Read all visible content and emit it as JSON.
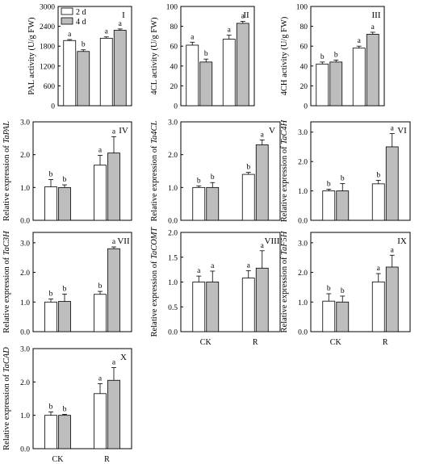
{
  "legend": [
    {
      "label": "2 d",
      "color": "#ffffff"
    },
    {
      "label": "4 d",
      "color": "#bdbdbd"
    }
  ],
  "chart_data": [
    {
      "type": "bar",
      "panel": "I",
      "ylabel_parts": [
        {
          "t": "PAL activity (U/g FW)",
          "i": false
        }
      ],
      "ylim": [
        0,
        3000
      ],
      "ticks": [
        0,
        600,
        1200,
        1800,
        2400,
        3000
      ],
      "tick_labels": [
        "0",
        "600",
        "1200",
        "1800",
        "2400",
        "3000"
      ],
      "categories": [
        "CK",
        "R"
      ],
      "show_xticks": false,
      "series": [
        {
          "name": "2 d",
          "values": [
            1970,
            2040
          ],
          "errors": [
            30,
            40
          ],
          "letters": [
            "a",
            "a"
          ]
        },
        {
          "name": "4 d",
          "values": [
            1640,
            2280
          ],
          "errors": [
            50,
            40
          ],
          "letters": [
            "b",
            "a"
          ]
        }
      ]
    },
    {
      "type": "bar",
      "panel": "II",
      "ylabel_parts": [
        {
          "t": "4CL activity (U/g FW)",
          "i": false
        }
      ],
      "ylim": [
        0,
        100
      ],
      "ticks": [
        0,
        20,
        40,
        60,
        80,
        100
      ],
      "tick_labels": [
        "0",
        "20",
        "40",
        "60",
        "80",
        "100"
      ],
      "categories": [
        "CK",
        "R"
      ],
      "show_xticks": false,
      "series": [
        {
          "name": "2 d",
          "values": [
            61,
            67
          ],
          "errors": [
            3,
            4
          ],
          "letters": [
            "a",
            "a"
          ]
        },
        {
          "name": "4 d",
          "values": [
            44,
            83
          ],
          "errors": [
            3,
            2
          ],
          "letters": [
            "b",
            "a"
          ]
        }
      ]
    },
    {
      "type": "bar",
      "panel": "III",
      "ylabel_parts": [
        {
          "t": "4CH activity (U/g FW)",
          "i": false
        }
      ],
      "ylim": [
        0,
        100
      ],
      "ticks": [
        0,
        20,
        40,
        60,
        80,
        100
      ],
      "tick_labels": [
        "0",
        "20",
        "40",
        "60",
        "80",
        "100"
      ],
      "categories": [
        "CK",
        "R"
      ],
      "show_xticks": false,
      "series": [
        {
          "name": "2 d",
          "values": [
            42,
            58
          ],
          "errors": [
            2,
            2
          ],
          "letters": [
            "b",
            "a"
          ]
        },
        {
          "name": "4 d",
          "values": [
            44,
            72
          ],
          "errors": [
            2,
            2
          ],
          "letters": [
            "b",
            "a"
          ]
        }
      ]
    },
    {
      "type": "bar",
      "panel": "IV",
      "ylabel_parts": [
        {
          "t": "Relative expression of ",
          "i": false
        },
        {
          "t": "TaPAL",
          "i": true
        }
      ],
      "ylim": [
        0,
        3
      ],
      "ticks": [
        0,
        1,
        2,
        3
      ],
      "tick_labels": [
        "0.0",
        "1.0",
        "2.0",
        "3.0"
      ],
      "categories": [
        "CK",
        "R"
      ],
      "show_xticks": false,
      "series": [
        {
          "name": "2 d",
          "values": [
            1.02,
            1.68
          ],
          "errors": [
            0.22,
            0.3
          ],
          "letters": [
            "b",
            "a"
          ]
        },
        {
          "name": "4 d",
          "values": [
            1.0,
            2.05
          ],
          "errors": [
            0.08,
            0.5
          ],
          "letters": [
            "b",
            "a"
          ]
        }
      ]
    },
    {
      "type": "bar",
      "panel": "V",
      "ylabel_parts": [
        {
          "t": "Relative expression of ",
          "i": false
        },
        {
          "t": "Ta4CL",
          "i": true
        }
      ],
      "ylim": [
        0,
        3
      ],
      "ticks": [
        0,
        1,
        2,
        3
      ],
      "tick_labels": [
        "0.0",
        "1.0",
        "2.0",
        "3.0"
      ],
      "categories": [
        "CK",
        "R"
      ],
      "show_xticks": false,
      "series": [
        {
          "name": "2 d",
          "values": [
            1.0,
            1.4
          ],
          "errors": [
            0.05,
            0.06
          ],
          "letters": [
            "b",
            "b"
          ]
        },
        {
          "name": "4 d",
          "values": [
            1.0,
            2.3
          ],
          "errors": [
            0.15,
            0.15
          ],
          "letters": [
            "b",
            "a"
          ]
        }
      ]
    },
    {
      "type": "bar",
      "panel": "VI",
      "ylabel_parts": [
        {
          "t": "Relative expression of ",
          "i": false
        },
        {
          "t": "TaC4H",
          "i": true
        }
      ],
      "ylim": [
        0,
        3.35
      ],
      "ticks": [
        0,
        1,
        2,
        3
      ],
      "tick_labels": [
        "0.0",
        "1.0",
        "2.0",
        "3.0"
      ],
      "categories": [
        "CK",
        "R"
      ],
      "show_xticks": false,
      "series": [
        {
          "name": "2 d",
          "values": [
            1.0,
            1.24
          ],
          "errors": [
            0.06,
            0.12
          ],
          "letters": [
            "b",
            "b"
          ]
        },
        {
          "name": "4 d",
          "values": [
            1.0,
            2.5
          ],
          "errors": [
            0.25,
            0.45
          ],
          "letters": [
            "b",
            "a"
          ]
        }
      ]
    },
    {
      "type": "bar",
      "panel": "VII",
      "ylabel_parts": [
        {
          "t": "Relative expression of ",
          "i": false
        },
        {
          "t": "TaC3H",
          "i": true
        }
      ],
      "ylim": [
        0,
        3.35
      ],
      "ticks": [
        0,
        1,
        2,
        3
      ],
      "tick_labels": [
        "0.0",
        "1.0",
        "2.0",
        "3.0"
      ],
      "categories": [
        "CK",
        "R"
      ],
      "show_xticks": false,
      "series": [
        {
          "name": "2 d",
          "values": [
            1.0,
            1.26
          ],
          "errors": [
            0.1,
            0.1
          ],
          "letters": [
            "b",
            "b"
          ]
        },
        {
          "name": "4 d",
          "values": [
            1.02,
            2.8
          ],
          "errors": [
            0.25,
            0.06
          ],
          "letters": [
            "b",
            "a"
          ]
        }
      ]
    },
    {
      "type": "bar",
      "panel": "VIII",
      "ylabel_parts": [
        {
          "t": "Relative expression of ",
          "i": false
        },
        {
          "t": "TaCOMT",
          "i": true
        }
      ],
      "ylim": [
        0,
        2.0
      ],
      "ticks": [
        0,
        0.5,
        1,
        1.5,
        2
      ],
      "tick_labels": [
        "0.0",
        "0.5",
        "1.0",
        "1.5",
        "2.0"
      ],
      "categories": [
        "CK",
        "R"
      ],
      "show_xticks": true,
      "series": [
        {
          "name": "2 d",
          "values": [
            1.0,
            1.08
          ],
          "errors": [
            0.12,
            0.15
          ],
          "letters": [
            "a",
            "a"
          ]
        },
        {
          "name": "4 d",
          "values": [
            1.0,
            1.28
          ],
          "errors": [
            0.22,
            0.35
          ],
          "letters": [
            "a",
            "a"
          ]
        }
      ]
    },
    {
      "type": "bar",
      "panel": "IX",
      "ylabel_parts": [
        {
          "t": "Relative expression of ",
          "i": false
        },
        {
          "t": "TaF5H",
          "i": true
        }
      ],
      "ylim": [
        0,
        3.35
      ],
      "ticks": [
        0,
        1,
        2,
        3
      ],
      "tick_labels": [
        "0.0",
        "1.0",
        "2.0",
        "3.0"
      ],
      "categories": [
        "CK",
        "R"
      ],
      "show_xticks": true,
      "series": [
        {
          "name": "2 d",
          "values": [
            1.03,
            1.68
          ],
          "errors": [
            0.25,
            0.28
          ],
          "letters": [
            "b",
            "a"
          ]
        },
        {
          "name": "4 d",
          "values": [
            1.0,
            2.18
          ],
          "errors": [
            0.2,
            0.4
          ],
          "letters": [
            "b",
            "a"
          ]
        }
      ]
    },
    {
      "type": "bar",
      "panel": "X",
      "ylabel_parts": [
        {
          "t": "Relative expression of ",
          "i": false
        },
        {
          "t": "TaCAD",
          "i": true
        }
      ],
      "ylim": [
        0,
        3
      ],
      "ticks": [
        0,
        1,
        2,
        3
      ],
      "tick_labels": [
        "0.0",
        "1.0",
        "2.0",
        "3.0"
      ],
      "categories": [
        "CK",
        "R"
      ],
      "show_xticks": true,
      "series": [
        {
          "name": "2 d",
          "values": [
            1.0,
            1.65
          ],
          "errors": [
            0.1,
            0.3
          ],
          "letters": [
            "b",
            "a"
          ]
        },
        {
          "name": "4 d",
          "values": [
            1.0,
            2.05
          ],
          "errors": [
            0.03,
            0.38
          ],
          "letters": [
            "b",
            "a"
          ]
        }
      ]
    }
  ]
}
